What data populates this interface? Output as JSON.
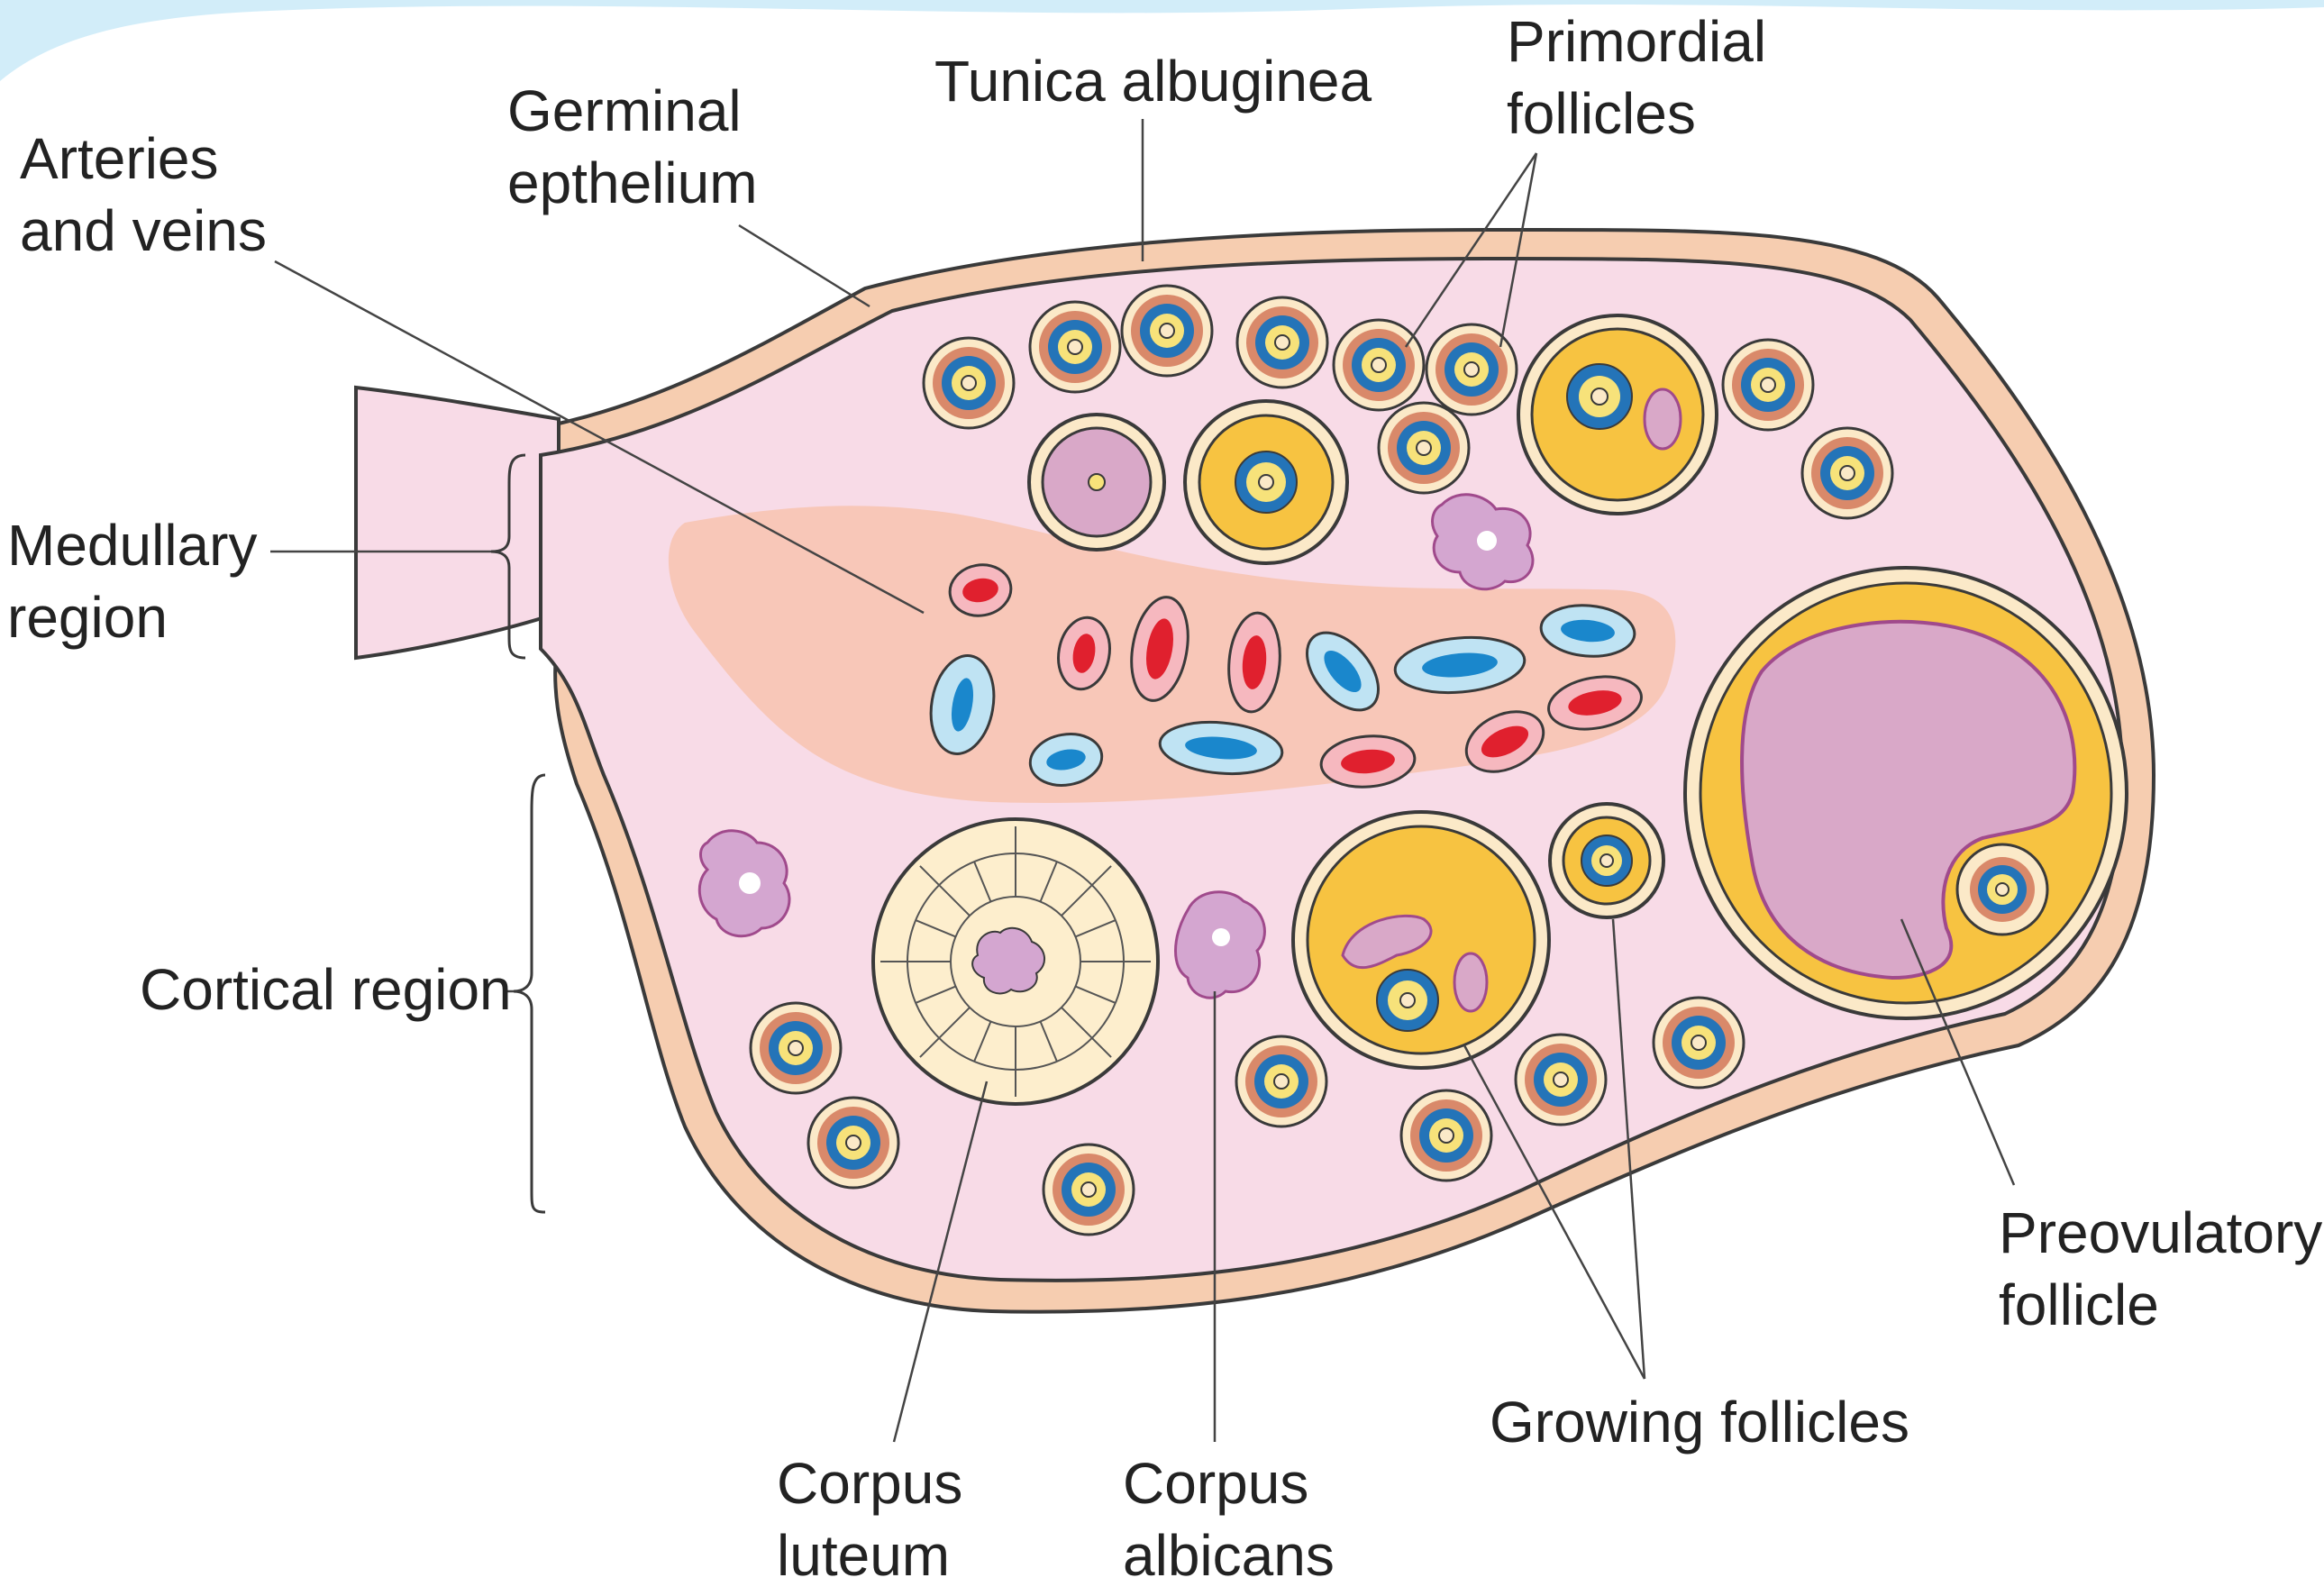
{
  "labels": {
    "arteries_veins": [
      "Arteries",
      "and veins"
    ],
    "germinal": [
      "Germinal",
      "epthelium"
    ],
    "tunica": [
      "Tunica albuginea"
    ],
    "primordial": [
      "Primordial",
      "follicles"
    ],
    "medullary": [
      "Medullary",
      "region"
    ],
    "cortical": [
      "Cortical region"
    ],
    "preovulatory": [
      "Preovulatory",
      "follicle"
    ],
    "growing": [
      "Growing follicles"
    ],
    "corpus_luteum": [
      "Corpus",
      "luteum"
    ],
    "corpus_albicans": [
      "Corpus",
      "albicans"
    ]
  },
  "colors": {
    "stroma": "#f8dbe7",
    "capsule": "#f6cdb0",
    "outline": "#3a3a3a",
    "medulla": "#f8c7b8",
    "artery": "#e0202e",
    "artery_wall": "#f6b8bf",
    "vein": "#1a87cc",
    "vein_wall": "#bfe3f3",
    "follicle_orange": "#d9896a",
    "follicle_blue": "#2474b8",
    "oocyte_yellow": "#f7e27a",
    "granulosa": "#f7c341",
    "antrum": "#d9a8c8",
    "luteum": "#fdeecd",
    "albicans": "#d4a6d0"
  }
}
